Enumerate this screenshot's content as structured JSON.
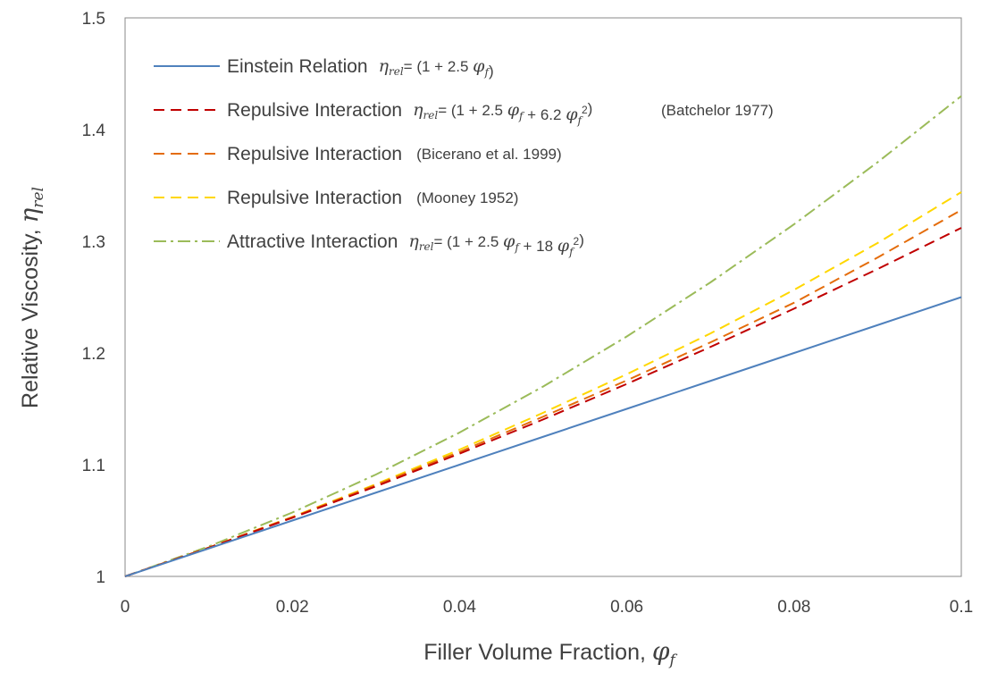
{
  "chart_data": {
    "type": "line",
    "xlabel_text": "Filler Volume Fraction, ",
    "xlabel_symbol": "φ",
    "xlabel_sub": "f",
    "ylabel_text": "Relative Viscosity, ",
    "ylabel_symbol": "η",
    "ylabel_sub": "rel",
    "xlim": [
      0,
      0.1
    ],
    "ylim": [
      1,
      1.5
    ],
    "x_ticks": [
      0,
      0.02,
      0.04,
      0.06,
      0.08,
      0.1
    ],
    "x_tick_labels": [
      "0",
      "0.02",
      "0.04",
      "0.06",
      "0.08",
      "0.1"
    ],
    "y_ticks": [
      1,
      1.1,
      1.2,
      1.3,
      1.4,
      1.5
    ],
    "y_tick_labels": [
      "1",
      "1.1",
      "1.2",
      "1.3",
      "1.4",
      "1.5"
    ],
    "grid": false,
    "legend_position": "top-left",
    "x": [
      0,
      0.01,
      0.02,
      0.03,
      0.04,
      0.05,
      0.06,
      0.07,
      0.08,
      0.09,
      0.1
    ],
    "series": [
      {
        "name": "Einstein Relation",
        "extra": "",
        "formula": "= (1 + 2.5 φf)",
        "color": "#4f81bd",
        "dash": "solid",
        "values": [
          1.0,
          1.025,
          1.05,
          1.075,
          1.1,
          1.125,
          1.15,
          1.175,
          1.2,
          1.225,
          1.25
        ]
      },
      {
        "name": "Repulsive Interaction",
        "extra": "(Batchelor 1977)",
        "formula": "= (1 + 2.5 φf + 6.2 φf²)",
        "color": "#c00000",
        "dash": "dashed",
        "values": [
          1.0,
          1.0256,
          1.0525,
          1.0806,
          1.1099,
          1.1405,
          1.1723,
          1.2054,
          1.2397,
          1.2752,
          1.312
        ]
      },
      {
        "name": "Repulsive Interaction",
        "extra": "(Bicerano et al. 1999)",
        "formula": "",
        "color": "#e46c0a",
        "dash": "dashed",
        "values": [
          1.0,
          1.0257,
          1.053,
          1.0818,
          1.1115,
          1.143,
          1.1755,
          1.2095,
          1.245,
          1.2855,
          1.328
        ]
      },
      {
        "name": "Repulsive Interaction",
        "extra": "(Mooney 1952)",
        "formula": "",
        "color": "#ffd700",
        "dash": "dashed",
        "values": [
          1.0,
          1.0258,
          1.0533,
          1.0826,
          1.1135,
          1.1465,
          1.181,
          1.2175,
          1.2565,
          1.2985,
          1.344
        ]
      },
      {
        "name": "Attractive Interaction",
        "extra": "",
        "formula": "= (1 + 2.5 φf + 18 φf²)",
        "color": "#9bbb59",
        "dash": "dashdot",
        "values": [
          1.0,
          1.0268,
          1.0572,
          1.0912,
          1.1288,
          1.17,
          1.2148,
          1.2632,
          1.3152,
          1.3708,
          1.43
        ]
      }
    ]
  }
}
